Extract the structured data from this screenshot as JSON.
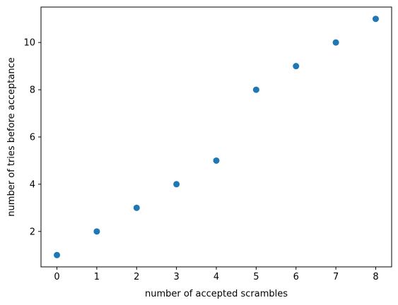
{
  "chart_data": {
    "type": "scatter",
    "title": "",
    "xlabel": "number of accepted scrambles",
    "ylabel": "number of tries before acceptance",
    "x": [
      0,
      1,
      2,
      3,
      4,
      5,
      6,
      7,
      8
    ],
    "y": [
      1,
      2,
      3,
      4,
      5,
      8,
      9,
      10,
      11
    ],
    "xlim": [
      -0.4,
      8.4
    ],
    "ylim": [
      0.5,
      11.5
    ],
    "xticks": [
      0,
      1,
      2,
      3,
      4,
      5,
      6,
      7,
      8
    ],
    "yticks": [
      2,
      4,
      6,
      8,
      10
    ],
    "grid": false,
    "legend": "none",
    "marker_color": "#1f77b4"
  }
}
